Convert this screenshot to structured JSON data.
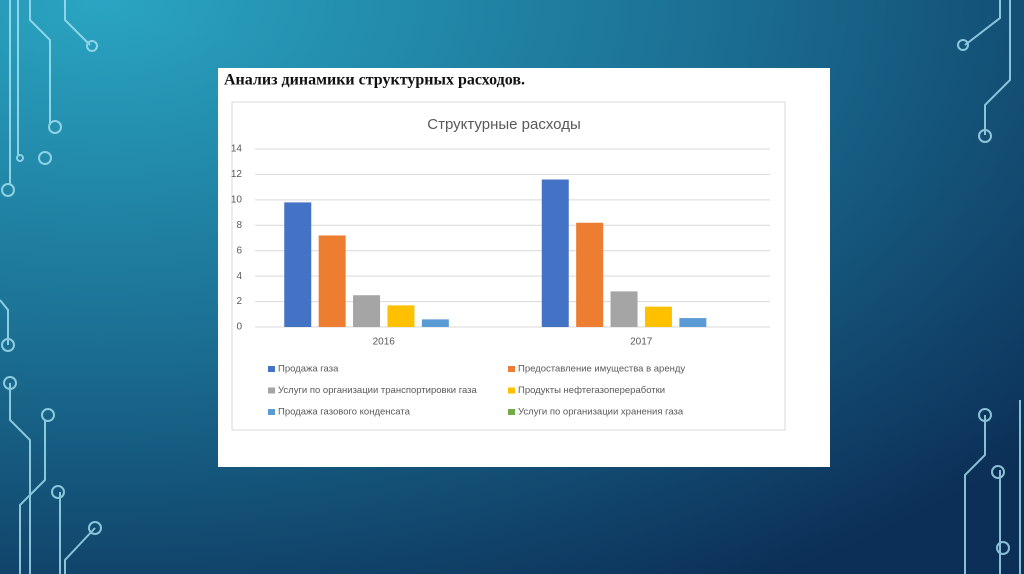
{
  "heading": "Анализ динамики структурных расходов.",
  "chart_data": {
    "type": "bar",
    "title": "Структурные расходы",
    "categories": [
      "2016",
      "2017"
    ],
    "series": [
      {
        "name": "Продажа газа",
        "color": "#4472c4",
        "values": [
          9.8,
          11.6
        ]
      },
      {
        "name": "Предоставление имущества в аренду",
        "color": "#ed7d31",
        "values": [
          7.2,
          8.2
        ]
      },
      {
        "name": "Услуги по организации транспортировки газа",
        "color": "#a5a5a5",
        "values": [
          2.5,
          2.8
        ]
      },
      {
        "name": "Продукты нефтегазопереработки",
        "color": "#ffc000",
        "values": [
          1.7,
          1.6
        ]
      },
      {
        "name": "Продажа газового конденсата",
        "color": "#5b9bd5",
        "values": [
          0.6,
          0.7
        ]
      },
      {
        "name": "Услуги по организации хранения газа",
        "color": "#70ad47",
        "values": [
          0,
          0
        ]
      }
    ],
    "ylim": [
      0,
      14
    ],
    "yticks": [
      0,
      2,
      4,
      6,
      8,
      10,
      12,
      14
    ],
    "grid": true,
    "legend": "bottom"
  }
}
